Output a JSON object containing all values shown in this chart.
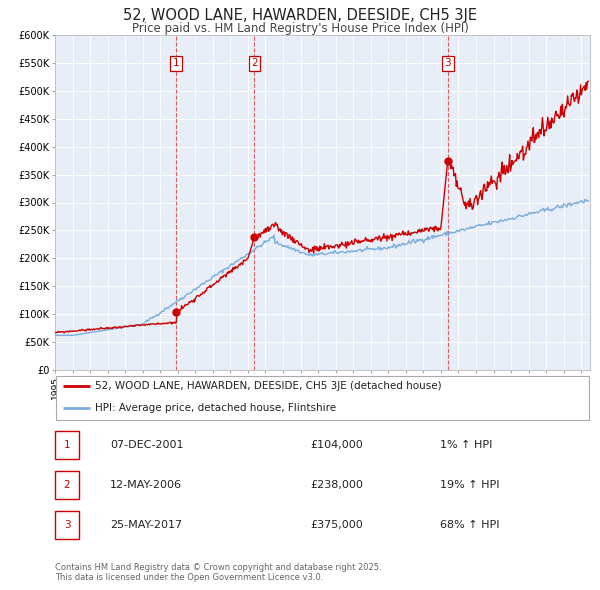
{
  "title": "52, WOOD LANE, HAWARDEN, DEESIDE, CH5 3JE",
  "subtitle": "Price paid vs. HM Land Registry's House Price Index (HPI)",
  "title_fontsize": 10.5,
  "subtitle_fontsize": 8.5,
  "background_color": "#ffffff",
  "plot_bg_color": "#e8eef8",
  "grid_color": "#ffffff",
  "sale_color": "#cc0000",
  "hpi_color": "#7aaddd",
  "ylim": [
    0,
    600000
  ],
  "yticks": [
    0,
    50000,
    100000,
    150000,
    200000,
    250000,
    300000,
    350000,
    400000,
    450000,
    500000,
    550000,
    600000
  ],
  "xmin": 1995,
  "xmax": 2025.5,
  "sales": [
    {
      "year": 2001.92,
      "price": 104000,
      "label": "1"
    },
    {
      "year": 2006.37,
      "price": 238000,
      "label": "2"
    },
    {
      "year": 2017.39,
      "price": 375000,
      "label": "3"
    }
  ],
  "vlines": [
    2001.92,
    2006.37,
    2017.39
  ],
  "legend_items": [
    {
      "label": "52, WOOD LANE, HAWARDEN, DEESIDE, CH5 3JE (detached house)",
      "color": "#cc0000"
    },
    {
      "label": "HPI: Average price, detached house, Flintshire",
      "color": "#7aaddd"
    }
  ],
  "table_rows": [
    {
      "num": "1",
      "date": "07-DEC-2001",
      "price": "£104,000",
      "change": "1% ↑ HPI"
    },
    {
      "num": "2",
      "date": "12-MAY-2006",
      "price": "£238,000",
      "change": "19% ↑ HPI"
    },
    {
      "num": "3",
      "date": "25-MAY-2017",
      "price": "£375,000",
      "change": "68% ↑ HPI"
    }
  ],
  "footer": "Contains HM Land Registry data © Crown copyright and database right 2025.\nThis data is licensed under the Open Government Licence v3.0."
}
